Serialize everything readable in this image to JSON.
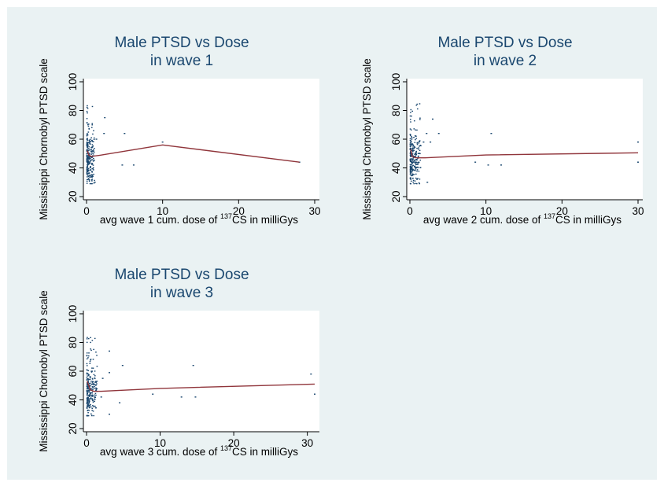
{
  "colors": {
    "background": "#eaf2f3",
    "plot_background": "#ffffff",
    "title": "#1a476f",
    "points": "#1a476f",
    "fit_line": "#90353b"
  },
  "chart_data": [
    {
      "type": "scatter",
      "title": "Male PTSD vs Dose",
      "subtitle": "in wave 1",
      "xlabel_pre": "avg wave 1 cum. dose of ",
      "xlabel_sup": "137",
      "xlabel_post": "CS in milliGys",
      "ylabel": "Mississippi Chornobyl PTSD scale",
      "xlim": [
        0,
        30
      ],
      "ylim": [
        20,
        100
      ],
      "xticks": [
        "0",
        "10",
        "20",
        "30"
      ],
      "yticks": [
        "20",
        "40",
        "60",
        "80",
        "100"
      ],
      "grid": false,
      "outliers": [
        [
          2.4,
          75
        ],
        [
          2.3,
          64
        ],
        [
          5,
          64
        ],
        [
          1.3,
          60
        ],
        [
          4.7,
          42
        ],
        [
          6.2,
          42
        ],
        [
          10,
          58
        ],
        [
          28,
          44
        ],
        [
          1.1,
          30
        ]
      ],
      "fit_line": [
        [
          0.1,
          52
        ],
        [
          0.3,
          49
        ],
        [
          0.6,
          48
        ],
        [
          2,
          49
        ],
        [
          10,
          56
        ],
        [
          28,
          44
        ]
      ]
    },
    {
      "type": "scatter",
      "title": "Male PTSD vs Dose",
      "subtitle": "in wave 2",
      "xlabel_pre": "avg wave 2 cum. dose of ",
      "xlabel_sup": "137",
      "xlabel_post": "CS in milliGys",
      "ylabel": "Mississippi Chornobyl PTSD scale",
      "xlim": [
        0,
        30
      ],
      "ylim": [
        20,
        100
      ],
      "xticks": [
        "0",
        "10",
        "20",
        "30"
      ],
      "yticks": [
        "20",
        "40",
        "60",
        "80",
        "100"
      ],
      "grid": false,
      "outliers": [
        [
          3,
          74
        ],
        [
          2.2,
          64
        ],
        [
          3.8,
          64
        ],
        [
          10.7,
          64
        ],
        [
          1.8,
          58
        ],
        [
          2.7,
          58
        ],
        [
          30,
          58
        ],
        [
          8.6,
          44
        ],
        [
          10.3,
          42
        ],
        [
          12,
          42
        ],
        [
          30,
          44
        ],
        [
          2.3,
          30
        ]
      ],
      "fit_line": [
        [
          0.1,
          53
        ],
        [
          0.3,
          48
        ],
        [
          0.8,
          47
        ],
        [
          2,
          47
        ],
        [
          10,
          49
        ],
        [
          30,
          50.5
        ]
      ]
    },
    {
      "type": "scatter",
      "title": "Male PTSD vs Dose",
      "subtitle": "in wave 3",
      "xlabel_pre": "avg wave 3 cum. dose of ",
      "xlabel_sup": "137",
      "xlabel_post": "CS in milliGys",
      "ylabel": "Mississippi Chornobyl PTSD scale",
      "xlim": [
        0,
        31
      ],
      "ylim": [
        20,
        100
      ],
      "xticks": [
        "0",
        "10",
        "20",
        "30"
      ],
      "yticks": [
        "20",
        "40",
        "60",
        "80",
        "100"
      ],
      "grid": false,
      "outliers": [
        [
          3.1,
          74
        ],
        [
          4.9,
          64
        ],
        [
          14.5,
          64
        ],
        [
          3.1,
          59
        ],
        [
          2.2,
          55
        ],
        [
          30.5,
          58
        ],
        [
          9,
          44
        ],
        [
          12.9,
          42
        ],
        [
          14.8,
          42
        ],
        [
          31,
          44
        ],
        [
          2,
          42
        ],
        [
          4.5,
          38
        ],
        [
          3.1,
          30
        ]
      ],
      "fit_line": [
        [
          0.1,
          53
        ],
        [
          0.5,
          47
        ],
        [
          1,
          46
        ],
        [
          2,
          46
        ],
        [
          10,
          48
        ],
        [
          31,
          51
        ]
      ]
    }
  ]
}
